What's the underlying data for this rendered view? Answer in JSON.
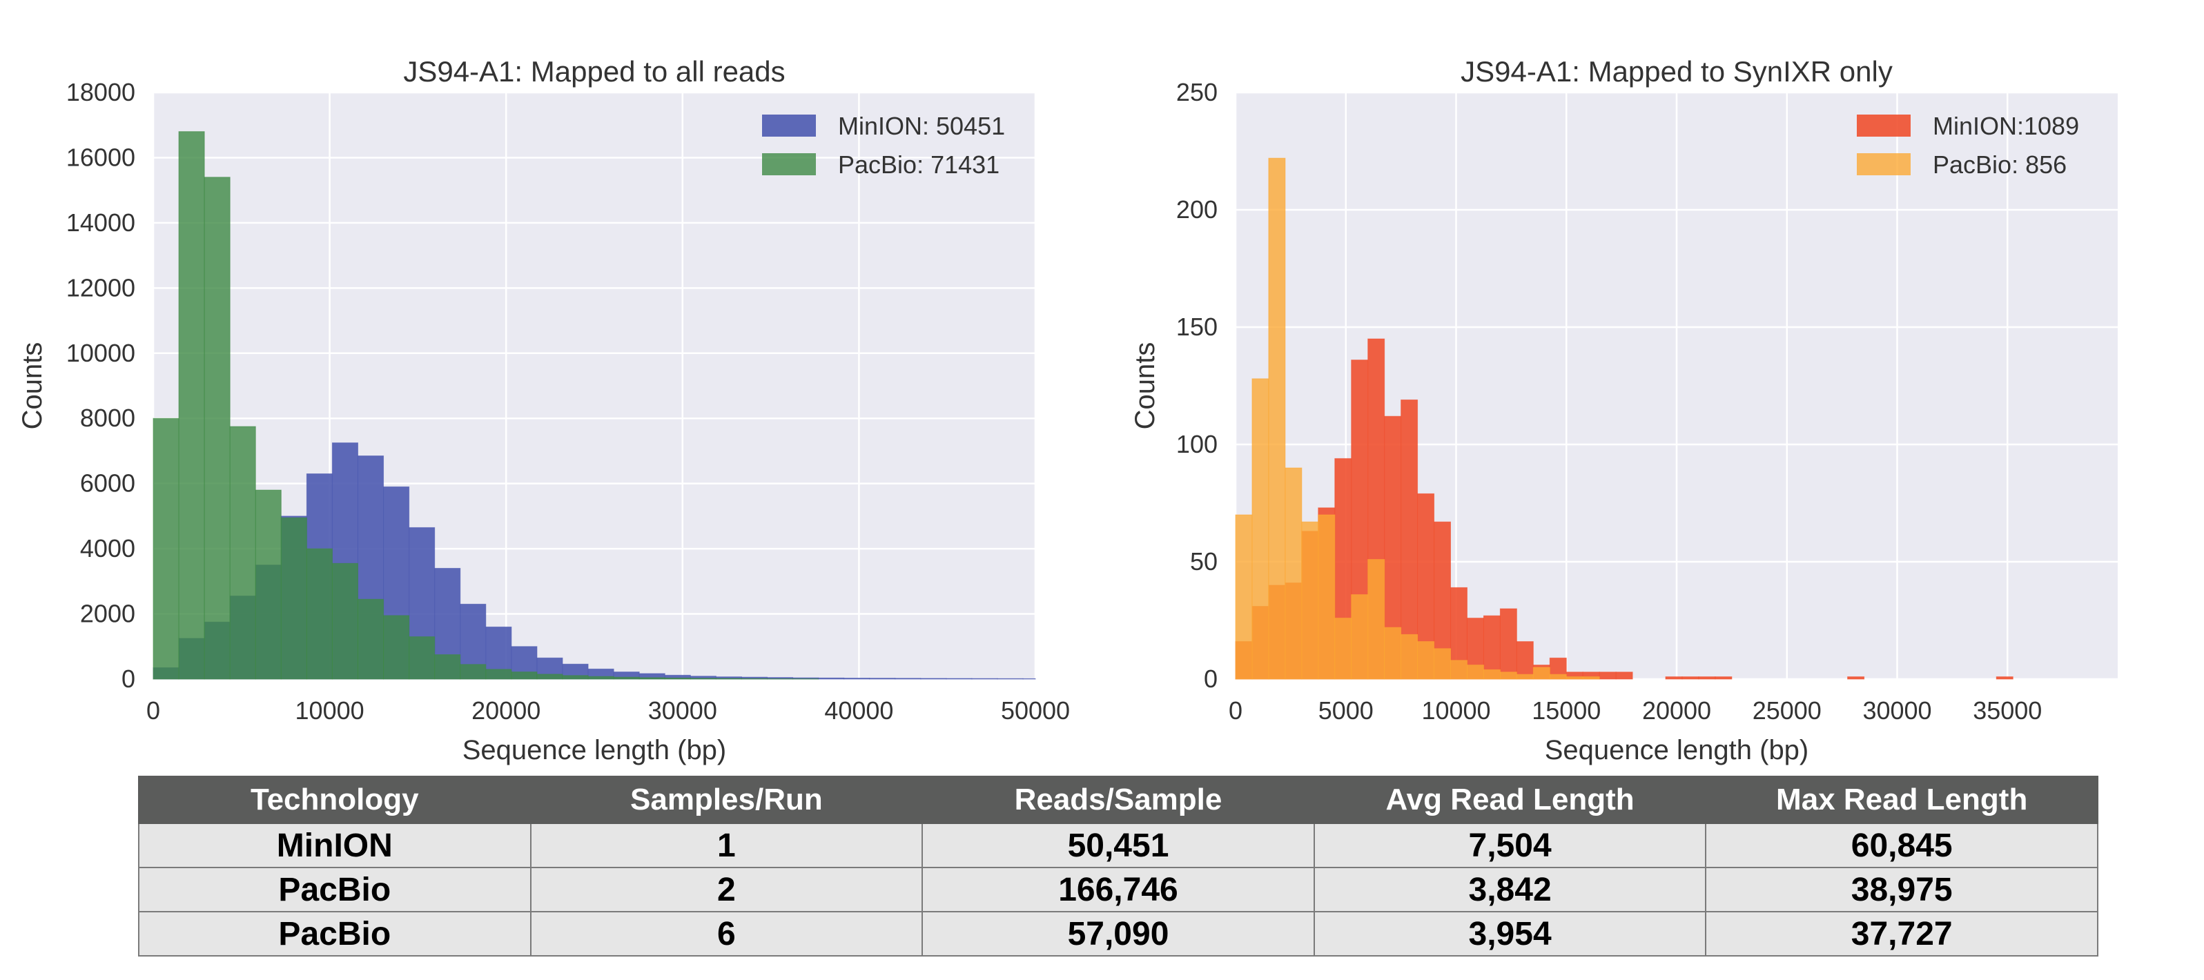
{
  "chart_data": [
    {
      "type": "bar",
      "title": "JS94-A1: Mapped to all reads",
      "xlabel": "Sequence length (bp)",
      "ylabel": "Counts",
      "xlim": [
        0,
        50000
      ],
      "ylim": [
        0,
        18000
      ],
      "xticks": [
        "0",
        "10000",
        "20000",
        "30000",
        "40000",
        "50000"
      ],
      "yticks": [
        "0",
        "2000",
        "4000",
        "6000",
        "8000",
        "10000",
        "12000",
        "14000",
        "16000",
        "18000"
      ],
      "grid": true,
      "legend_position": "top-right",
      "bin_width": 1450,
      "series": [
        {
          "name": "MinION: 50451",
          "color": "#4c5ab0",
          "values": [
            350,
            1250,
            1750,
            2550,
            3500,
            5000,
            6300,
            7250,
            6850,
            5900,
            4650,
            3400,
            2300,
            1600,
            1000,
            650,
            460,
            310,
            220,
            170,
            120,
            90,
            70,
            60,
            50,
            40,
            35,
            30,
            28,
            25,
            22,
            20,
            18,
            16,
            14,
            12,
            10,
            9,
            8,
            7,
            6,
            5,
            4,
            3
          ]
        },
        {
          "name": "PacBio: 71431",
          "color": "#3f8a45",
          "values": [
            8000,
            16800,
            15400,
            7750,
            5800,
            4950,
            4000,
            3550,
            2450,
            1950,
            1300,
            750,
            450,
            300,
            220,
            150,
            110,
            80,
            60,
            45,
            35,
            25,
            20,
            15,
            10,
            8
          ]
        }
      ]
    },
    {
      "type": "bar",
      "title": "JS94-A1: Mapped to SynIXR only",
      "xlabel": "Sequence length (bp)",
      "ylabel": "Counts",
      "xlim": [
        0,
        40000
      ],
      "ylim": [
        0,
        250
      ],
      "xticks": [
        "0",
        "5000",
        "10000",
        "15000",
        "20000",
        "25000",
        "30000",
        "35000"
      ],
      "yticks": [
        "0",
        "50",
        "100",
        "150",
        "200",
        "250"
      ],
      "grid": true,
      "legend_position": "top-right",
      "bin_width": 750,
      "series": [
        {
          "name": "MinION:1089",
          "color": "#f0502f",
          "values": [
            16,
            31,
            40,
            41,
            63,
            73,
            94,
            136,
            145,
            112,
            119,
            79,
            67,
            39,
            26,
            27,
            30,
            16,
            6,
            9,
            3,
            3,
            3,
            3,
            0,
            0,
            1,
            1,
            1,
            1,
            0,
            0,
            0,
            0,
            0,
            0,
            0,
            1,
            0,
            0,
            0,
            0,
            0,
            0,
            0,
            0,
            1,
            0,
            0,
            0,
            0,
            0,
            0,
            0,
            0,
            0,
            1,
            0,
            0,
            0,
            0,
            0,
            0,
            0,
            0,
            0,
            0,
            1
          ]
        },
        {
          "name": "PacBio: 856",
          "color": "#fba934",
          "values": [
            70,
            128,
            222,
            90,
            67,
            70,
            26,
            36,
            51,
            22,
            19,
            16,
            13,
            8,
            6,
            4,
            3,
            2,
            5,
            2,
            1,
            1
          ]
        }
      ]
    }
  ],
  "table": {
    "headers": [
      "Technology",
      "Samples/Run",
      "Reads/Sample",
      "Avg Read Length",
      "Max Read Length"
    ],
    "rows": [
      [
        "MinION",
        "1",
        "50,451",
        "7,504",
        "60,845"
      ],
      [
        "PacBio",
        "2",
        "166,746",
        "3,842",
        "38,975"
      ],
      [
        "PacBio",
        "6",
        "57,090",
        "3,954",
        "37,727"
      ]
    ]
  }
}
